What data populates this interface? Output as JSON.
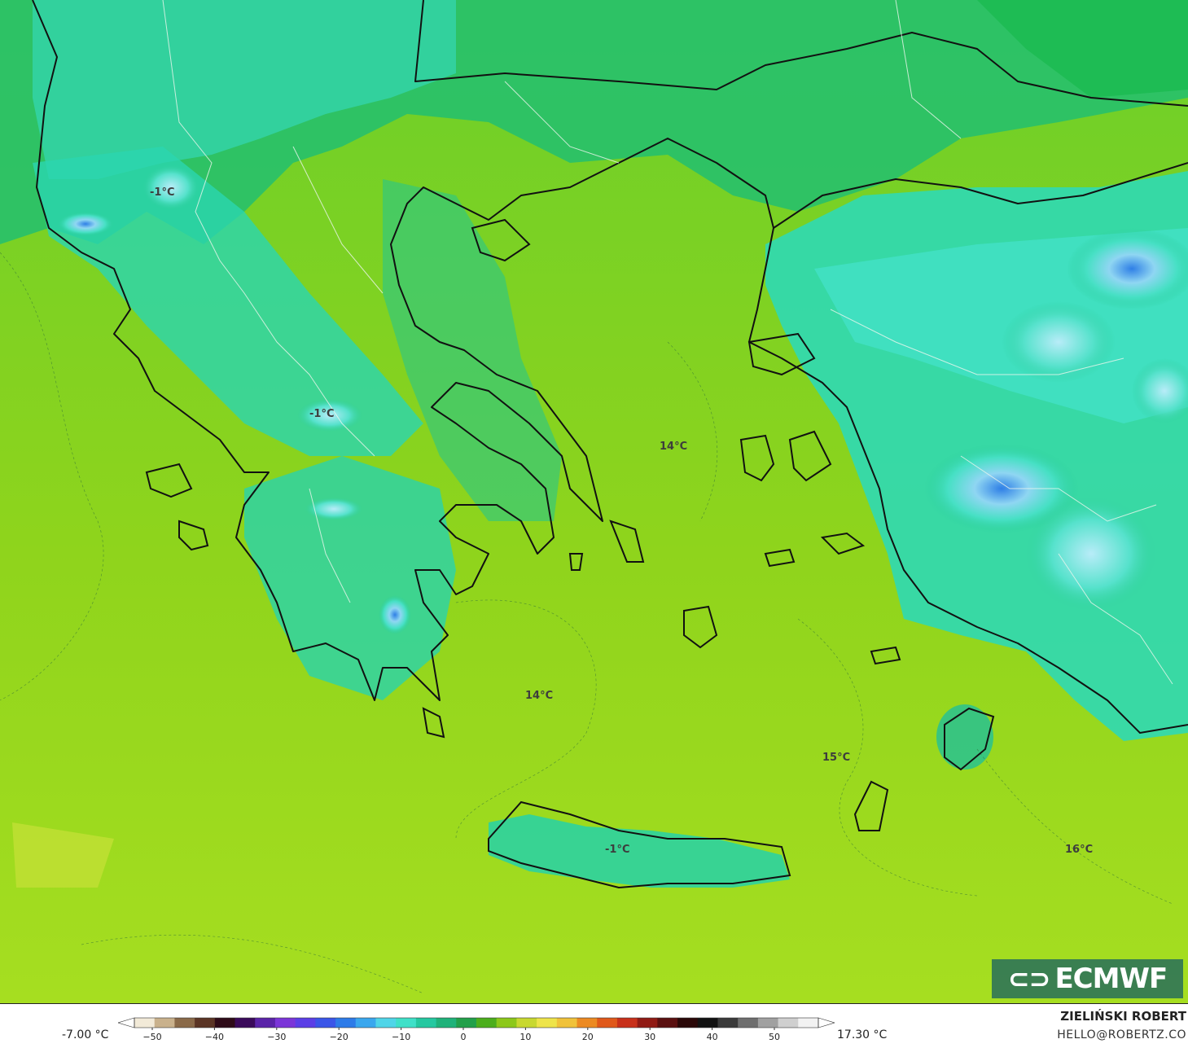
{
  "map": {
    "temperature_labels": [
      {
        "id": "nw-albania",
        "text": "-1°C"
      },
      {
        "id": "pindus",
        "text": "-1°C"
      },
      {
        "id": "north-aegean",
        "text": "14°C"
      },
      {
        "id": "south-aegean",
        "text": "14°C"
      },
      {
        "id": "dodecanese-sea",
        "text": "15°C"
      },
      {
        "id": "crete",
        "text": "-1°C"
      },
      {
        "id": "se-sea",
        "text": "16°C"
      }
    ]
  },
  "branding": {
    "logo_text": "ECMWF",
    "logo_icon": "ecmwf-logo-icon"
  },
  "legend": {
    "min_value": "-7.00 °C",
    "max_value": "17.30 °C",
    "ticks": [
      "−50",
      "−40",
      "−30",
      "−20",
      "−10",
      "0",
      "10",
      "20",
      "30",
      "40",
      "50"
    ],
    "colors": [
      "#f2ead8",
      "#c9b18c",
      "#8a6a49",
      "#5b3525",
      "#2e0b18",
      "#3a0a5a",
      "#5a23a8",
      "#7b35d8",
      "#5b3ee6",
      "#3a55e8",
      "#2d7be8",
      "#3aa7ee",
      "#50d5e8",
      "#3fe0c8",
      "#25c8a0",
      "#1fb27a",
      "#22a04a",
      "#4cae1c",
      "#8cc81a",
      "#c8d830",
      "#eee44a",
      "#f0c23a",
      "#ec8a22",
      "#e0581a",
      "#c8301a",
      "#901a14",
      "#5a1010",
      "#2a0808",
      "#121212",
      "#3a3a3a",
      "#6e6e6e",
      "#a0a0a0",
      "#cfcfcf",
      "#f2f2f2"
    ]
  },
  "credits": {
    "author": "ZIELIŃSKI ROBERT",
    "email": "HELLO@ROBERTZ.CO"
  }
}
